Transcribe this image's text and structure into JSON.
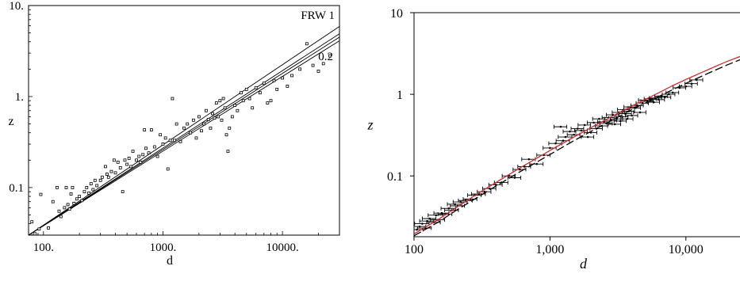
{
  "chart_data": [
    {
      "type": "scatter",
      "scale": "log-log",
      "xlabel": "d",
      "ylabel": "z",
      "xlim": [
        75,
        30000
      ],
      "ylim": [
        0.03,
        10
      ],
      "xticks": [
        {
          "v": 100,
          "label": "100."
        },
        {
          "v": 1000,
          "label": "1000."
        },
        {
          "v": 10000,
          "label": "10000."
        }
      ],
      "yticks": [
        {
          "v": 0.1,
          "label": "0.1"
        },
        {
          "v": 1,
          "label": "1."
        },
        {
          "v": 10,
          "label": "10."
        }
      ],
      "annotations": [
        "FRW 1",
        "0.2"
      ],
      "lines": [
        {
          "x": [
            75,
            30000
          ],
          "y": [
            0.03,
            5.9
          ]
        },
        {
          "x": [
            75,
            30000
          ],
          "y": [
            0.03,
            4.9
          ]
        },
        {
          "x": [
            75,
            30000
          ],
          "y": [
            0.03,
            4.5
          ]
        },
        {
          "x": [
            75,
            30000
          ],
          "y": [
            0.03,
            4.1
          ]
        }
      ],
      "points": [
        [
          80,
          0.042
        ],
        [
          85,
          0.031
        ],
        [
          92,
          0.035
        ],
        [
          95,
          0.084
        ],
        [
          110,
          0.036
        ],
        [
          120,
          0.07
        ],
        [
          130,
          0.1
        ],
        [
          135,
          0.055
        ],
        [
          140,
          0.048
        ],
        [
          150,
          0.06
        ],
        [
          155,
          0.1
        ],
        [
          160,
          0.065
        ],
        [
          165,
          0.058
        ],
        [
          170,
          0.085
        ],
        [
          175,
          0.1
        ],
        [
          180,
          0.067
        ],
        [
          190,
          0.075
        ],
        [
          200,
          0.08
        ],
        [
          210,
          0.072
        ],
        [
          220,
          0.09
        ],
        [
          230,
          0.1
        ],
        [
          240,
          0.087
        ],
        [
          250,
          0.11
        ],
        [
          260,
          0.095
        ],
        [
          270,
          0.12
        ],
        [
          280,
          0.105
        ],
        [
          300,
          0.12
        ],
        [
          310,
          0.13
        ],
        [
          330,
          0.17
        ],
        [
          340,
          0.14
        ],
        [
          350,
          0.13
        ],
        [
          370,
          0.15
        ],
        [
          390,
          0.2
        ],
        [
          400,
          0.145
        ],
        [
          420,
          0.19
        ],
        [
          440,
          0.165
        ],
        [
          460,
          0.09
        ],
        [
          480,
          0.2
        ],
        [
          500,
          0.18
        ],
        [
          520,
          0.21
        ],
        [
          540,
          0.17
        ],
        [
          560,
          0.25
        ],
        [
          600,
          0.2
        ],
        [
          630,
          0.22
        ],
        [
          650,
          0.19
        ],
        [
          680,
          0.23
        ],
        [
          700,
          0.43
        ],
        [
          720,
          0.27
        ],
        [
          760,
          0.24
        ],
        [
          800,
          0.43
        ],
        [
          850,
          0.28
        ],
        [
          900,
          0.22
        ],
        [
          950,
          0.38
        ],
        [
          1000,
          0.3
        ],
        [
          1050,
          0.35
        ],
        [
          1100,
          0.16
        ],
        [
          1150,
          0.33
        ],
        [
          1200,
          0.95
        ],
        [
          1250,
          0.33
        ],
        [
          1300,
          0.5
        ],
        [
          1400,
          0.32
        ],
        [
          1500,
          0.45
        ],
        [
          1600,
          0.5
        ],
        [
          1700,
          0.4
        ],
        [
          1800,
          0.55
        ],
        [
          1900,
          0.35
        ],
        [
          2000,
          0.6
        ],
        [
          2100,
          0.42
        ],
        [
          2200,
          0.5
        ],
        [
          2300,
          0.7
        ],
        [
          2400,
          0.56
        ],
        [
          2500,
          0.45
        ],
        [
          2600,
          0.65
        ],
        [
          2700,
          0.58
        ],
        [
          2800,
          0.85
        ],
        [
          2900,
          0.6
        ],
        [
          3000,
          0.9
        ],
        [
          3100,
          0.55
        ],
        [
          3200,
          0.95
        ],
        [
          3300,
          0.75
        ],
        [
          3400,
          0.38
        ],
        [
          3500,
          0.25
        ],
        [
          3600,
          0.45
        ],
        [
          3800,
          0.6
        ],
        [
          4000,
          0.8
        ],
        [
          4200,
          0.7
        ],
        [
          4500,
          1.1
        ],
        [
          4700,
          0.9
        ],
        [
          5000,
          1.2
        ],
        [
          5300,
          0.95
        ],
        [
          5600,
          0.75
        ],
        [
          6000,
          1.25
        ],
        [
          6500,
          1.1
        ],
        [
          7000,
          1.4
        ],
        [
          7500,
          0.85
        ],
        [
          8000,
          0.9
        ],
        [
          8500,
          1.5
        ],
        [
          9000,
          1.2
        ],
        [
          10000,
          1.6
        ],
        [
          11000,
          1.3
        ],
        [
          12000,
          1.7
        ],
        [
          14000,
          2.0
        ],
        [
          16000,
          3.8
        ],
        [
          18000,
          2.2
        ],
        [
          20000,
          1.9
        ],
        [
          22000,
          2.3
        ],
        [
          25000,
          2.8
        ]
      ]
    },
    {
      "type": "scatter",
      "scale": "log-log",
      "xlabel": "d",
      "ylabel": "z",
      "xlim": [
        100,
        25000
      ],
      "ylim": [
        0.018,
        10
      ],
      "xticks": [
        {
          "v": 100,
          "label": "100"
        },
        {
          "v": 1000,
          "label": "1,000"
        },
        {
          "v": 10000,
          "label": "10,000"
        }
      ],
      "yticks": [
        {
          "v": 0.1,
          "label": "0.1"
        },
        {
          "v": 1,
          "label": "1"
        },
        {
          "v": 10,
          "label": "10"
        }
      ],
      "curves": [
        {
          "color": "#d42a2a",
          "style": "solid",
          "x": [
            100,
            150,
            200,
            300,
            400,
            600,
            800,
            1000,
            1500,
            2000,
            3000,
            4000,
            6000,
            8000,
            10000,
            15000,
            20000,
            25000
          ],
          "y": [
            0.0195,
            0.029,
            0.04,
            0.062,
            0.083,
            0.125,
            0.165,
            0.205,
            0.3,
            0.39,
            0.56,
            0.72,
            1.0,
            1.28,
            1.52,
            2.05,
            2.52,
            2.9
          ]
        },
        {
          "color": "#000000",
          "style": "dashed",
          "x": [
            100,
            150,
            200,
            300,
            400,
            600,
            800,
            1000,
            1500,
            2000,
            3000,
            4000,
            6000,
            8000,
            10000,
            15000,
            20000,
            25000
          ],
          "y": [
            0.0185,
            0.027,
            0.037,
            0.056,
            0.075,
            0.112,
            0.148,
            0.183,
            0.27,
            0.35,
            0.5,
            0.65,
            0.9,
            1.14,
            1.36,
            1.85,
            2.28,
            2.65
          ]
        }
      ],
      "points": [
        [
          105,
          0.022,
          12
        ],
        [
          110,
          0.024,
          12
        ],
        [
          115,
          0.026,
          14
        ],
        [
          120,
          0.023,
          14
        ],
        [
          125,
          0.028,
          15
        ],
        [
          130,
          0.03,
          15
        ],
        [
          140,
          0.027,
          16
        ],
        [
          145,
          0.033,
          18
        ],
        [
          150,
          0.029,
          18
        ],
        [
          160,
          0.035,
          20
        ],
        [
          170,
          0.034,
          20
        ],
        [
          180,
          0.04,
          22
        ],
        [
          190,
          0.038,
          22
        ],
        [
          200,
          0.045,
          24
        ],
        [
          210,
          0.043,
          25
        ],
        [
          220,
          0.048,
          26
        ],
        [
          240,
          0.05,
          28
        ],
        [
          260,
          0.052,
          30
        ],
        [
          280,
          0.058,
          32
        ],
        [
          300,
          0.06,
          35
        ],
        [
          330,
          0.064,
          38
        ],
        [
          360,
          0.07,
          40
        ],
        [
          400,
          0.078,
          45
        ],
        [
          440,
          0.083,
          50
        ],
        [
          500,
          0.1,
          55
        ],
        [
          550,
          0.095,
          60
        ],
        [
          600,
          0.12,
          65
        ],
        [
          650,
          0.13,
          70
        ],
        [
          700,
          0.16,
          80
        ],
        [
          800,
          0.14,
          90
        ],
        [
          900,
          0.18,
          100
        ],
        [
          1000,
          0.22,
          110
        ],
        [
          1100,
          0.25,
          120
        ],
        [
          1200,
          0.4,
          130
        ],
        [
          1250,
          0.27,
          140
        ],
        [
          1300,
          0.3,
          150
        ],
        [
          1400,
          0.35,
          150
        ],
        [
          1500,
          0.32,
          160
        ],
        [
          1600,
          0.38,
          170
        ],
        [
          1700,
          0.36,
          180
        ],
        [
          1800,
          0.42,
          190
        ],
        [
          1900,
          0.3,
          200
        ],
        [
          2000,
          0.34,
          210
        ],
        [
          2100,
          0.45,
          220
        ],
        [
          2200,
          0.38,
          230
        ],
        [
          2300,
          0.5,
          240
        ],
        [
          2400,
          0.41,
          250
        ],
        [
          2500,
          0.46,
          260
        ],
        [
          2600,
          0.44,
          270
        ],
        [
          2700,
          0.52,
          280
        ],
        [
          2800,
          0.48,
          290
        ],
        [
          2900,
          0.56,
          300
        ],
        [
          3000,
          0.43,
          310
        ],
        [
          3100,
          0.5,
          320
        ],
        [
          3200,
          0.6,
          330
        ],
        [
          3300,
          0.47,
          340
        ],
        [
          3400,
          0.53,
          350
        ],
        [
          3500,
          0.65,
          360
        ],
        [
          3600,
          0.58,
          370
        ],
        [
          3700,
          0.5,
          380
        ],
        [
          3800,
          0.62,
          390
        ],
        [
          3900,
          0.7,
          400
        ],
        [
          4000,
          0.55,
          420
        ],
        [
          4200,
          0.68,
          440
        ],
        [
          4400,
          0.73,
          460
        ],
        [
          4600,
          0.6,
          480
        ],
        [
          4800,
          0.78,
          500
        ],
        [
          5000,
          0.85,
          520
        ],
        [
          5200,
          0.82,
          540
        ],
        [
          5500,
          0.88,
          570
        ],
        [
          5800,
          0.8,
          600
        ],
        [
          6000,
          0.9,
          640
        ],
        [
          6300,
          0.86,
          660
        ],
        [
          6600,
          0.95,
          700
        ],
        [
          7000,
          0.92,
          740
        ],
        [
          7500,
          1.0,
          800
        ],
        [
          8000,
          1.05,
          850
        ],
        [
          9000,
          1.2,
          950
        ],
        [
          10000,
          1.25,
          1050
        ],
        [
          11000,
          1.35,
          1150
        ],
        [
          12000,
          1.5,
          1300
        ]
      ]
    }
  ]
}
